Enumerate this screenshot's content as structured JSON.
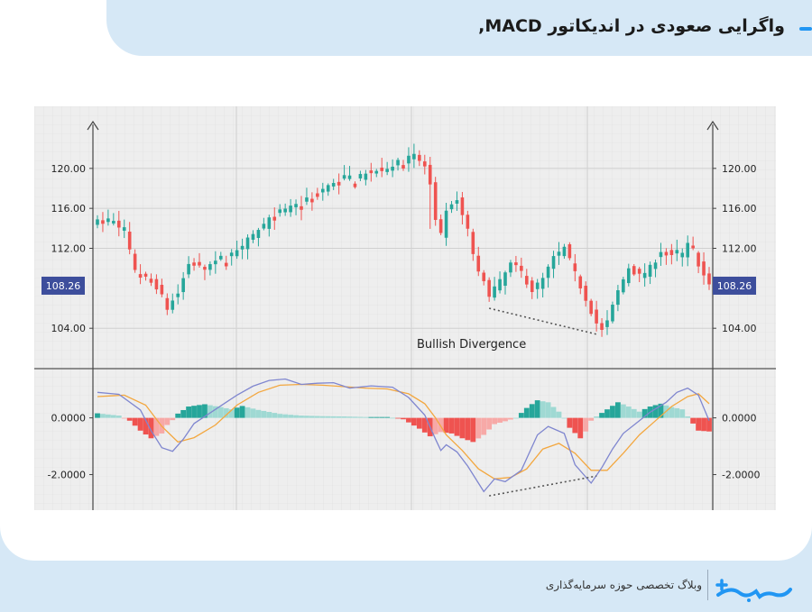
{
  "header": {
    "title": "واگرایی صعودی در اندیکاتور MACD,"
  },
  "footer": {
    "tagline": "وبلاگ تخصصی حوزه سرمایه‌گذاری"
  },
  "colors": {
    "up": "#26a69a",
    "down": "#ef5350",
    "macd": "#7f86cf",
    "signal": "#f3a73f",
    "badge": "#3d4e9c",
    "panel": "#eeeeee"
  },
  "chart_data": {
    "type": "candlestick",
    "annotation": "Bullish Divergence",
    "price_axis": {
      "ticks": [
        "120.00",
        "116.00",
        "112.00",
        "104.00"
      ],
      "tick_values": [
        120,
        116,
        112,
        104
      ],
      "range": [
        100.5,
        123.5
      ],
      "last_value": 108.26,
      "last_label": "108.26"
    },
    "macd_axis": {
      "ticks": [
        "0.0000",
        "-2.0000"
      ],
      "tick_values": [
        0,
        -2
      ],
      "range": [
        -3.0,
        1.45
      ]
    },
    "close_path": [
      [
        0,
        114.6
      ],
      [
        3,
        114.6
      ],
      [
        5,
        113.6
      ],
      [
        7,
        109.6
      ],
      [
        9,
        108.9
      ],
      [
        11,
        108.2
      ],
      [
        13,
        106.0
      ],
      [
        15,
        107.5
      ],
      [
        17,
        110.5
      ],
      [
        20,
        110.1
      ],
      [
        24,
        111.0
      ],
      [
        28,
        112.8
      ],
      [
        32,
        114.8
      ],
      [
        36,
        116.0
      ],
      [
        40,
        117.1
      ],
      [
        44,
        118.5
      ],
      [
        48,
        118.9
      ],
      [
        52,
        119.8
      ],
      [
        56,
        120.5
      ],
      [
        59,
        121.2
      ],
      [
        61,
        120.2
      ],
      [
        62,
        118.3
      ],
      [
        63,
        114.5
      ],
      [
        64,
        113.2
      ],
      [
        65,
        115.5
      ],
      [
        67,
        116.9
      ],
      [
        69,
        113.7
      ],
      [
        70,
        111.5
      ],
      [
        71,
        109.4
      ],
      [
        73,
        107.5
      ],
      [
        75,
        108.6
      ],
      [
        77,
        110.4
      ],
      [
        79,
        109.6
      ],
      [
        81,
        107.8
      ],
      [
        83,
        108.9
      ],
      [
        85,
        111.0
      ],
      [
        87,
        112.0
      ],
      [
        89,
        109.4
      ],
      [
        91,
        107.0
      ],
      [
        93,
        104.5
      ],
      [
        94,
        103.7
      ],
      [
        95,
        104.6
      ],
      [
        97,
        107.7
      ],
      [
        99,
        110.1
      ],
      [
        101,
        109.2
      ],
      [
        103,
        110.0
      ],
      [
        105,
        111.8
      ],
      [
        107,
        111.2
      ],
      [
        109,
        111.4
      ],
      [
        110,
        112.3
      ],
      [
        111,
        111.8
      ],
      [
        112,
        110.4
      ],
      [
        113,
        109.2
      ],
      [
        114,
        108.6
      ]
    ],
    "macd_line": [
      [
        0,
        0.9
      ],
      [
        4,
        0.83
      ],
      [
        8,
        0.28
      ],
      [
        10,
        -0.45
      ],
      [
        12,
        -1.05
      ],
      [
        14,
        -1.18
      ],
      [
        16,
        -0.75
      ],
      [
        18,
        -0.2
      ],
      [
        22,
        0.3
      ],
      [
        26,
        0.8
      ],
      [
        29,
        1.12
      ],
      [
        32,
        1.32
      ],
      [
        35,
        1.37
      ],
      [
        38,
        1.18
      ],
      [
        41,
        1.22
      ],
      [
        44,
        1.24
      ],
      [
        47,
        1.05
      ],
      [
        51,
        1.13
      ],
      [
        55,
        1.08
      ],
      [
        58,
        0.72
      ],
      [
        61,
        0.1
      ],
      [
        63,
        -0.75
      ],
      [
        64,
        -1.15
      ],
      [
        65,
        -0.95
      ],
      [
        67,
        -1.2
      ],
      [
        69,
        -1.7
      ],
      [
        72,
        -2.6
      ],
      [
        74,
        -2.15
      ],
      [
        76,
        -2.25
      ],
      [
        79,
        -1.85
      ],
      [
        82,
        -0.6
      ],
      [
        84,
        -0.3
      ],
      [
        87,
        -0.55
      ],
      [
        89,
        -1.65
      ],
      [
        92,
        -2.3
      ],
      [
        94,
        -1.75
      ],
      [
        96,
        -1.1
      ],
      [
        98,
        -0.55
      ],
      [
        101,
        -0.1
      ],
      [
        103,
        0.2
      ],
      [
        106,
        0.55
      ],
      [
        108,
        0.9
      ],
      [
        110,
        1.05
      ],
      [
        112,
        0.8
      ],
      [
        114,
        -0.1
      ]
    ],
    "signal_line": [
      [
        0,
        0.75
      ],
      [
        5,
        0.8
      ],
      [
        9,
        0.45
      ],
      [
        12,
        -0.3
      ],
      [
        15,
        -0.85
      ],
      [
        18,
        -0.7
      ],
      [
        22,
        -0.25
      ],
      [
        26,
        0.45
      ],
      [
        30,
        0.9
      ],
      [
        34,
        1.15
      ],
      [
        38,
        1.18
      ],
      [
        42,
        1.15
      ],
      [
        46,
        1.1
      ],
      [
        50,
        1.05
      ],
      [
        54,
        1.02
      ],
      [
        58,
        0.85
      ],
      [
        61,
        0.5
      ],
      [
        63,
        0.0
      ],
      [
        65,
        -0.6
      ],
      [
        68,
        -1.15
      ],
      [
        71,
        -1.8
      ],
      [
        74,
        -2.15
      ],
      [
        77,
        -2.1
      ],
      [
        80,
        -1.8
      ],
      [
        83,
        -1.1
      ],
      [
        86,
        -0.9
      ],
      [
        89,
        -1.25
      ],
      [
        92,
        -1.85
      ],
      [
        95,
        -1.85
      ],
      [
        98,
        -1.25
      ],
      [
        101,
        -0.6
      ],
      [
        104,
        -0.1
      ],
      [
        107,
        0.4
      ],
      [
        110,
        0.75
      ],
      [
        112,
        0.85
      ],
      [
        114,
        0.5
      ]
    ],
    "histogram_path": [
      [
        0,
        0.16
      ],
      [
        4,
        0.08
      ],
      [
        6,
        -0.1
      ],
      [
        8,
        -0.45
      ],
      [
        10,
        -0.72
      ],
      [
        12,
        -0.55
      ],
      [
        13,
        -0.25
      ],
      [
        14,
        -0.08
      ],
      [
        15,
        0.15
      ],
      [
        17,
        0.4
      ],
      [
        20,
        0.48
      ],
      [
        23,
        0.38
      ],
      [
        25,
        0.3
      ],
      [
        27,
        0.42
      ],
      [
        30,
        0.28
      ],
      [
        34,
        0.14
      ],
      [
        38,
        0.08
      ],
      [
        42,
        0.06
      ],
      [
        46,
        0.05
      ],
      [
        50,
        0.03
      ],
      [
        54,
        0.03
      ],
      [
        57,
        -0.05
      ],
      [
        60,
        -0.38
      ],
      [
        62,
        -0.65
      ],
      [
        64,
        -0.5
      ],
      [
        66,
        -0.55
      ],
      [
        68,
        -0.72
      ],
      [
        70,
        -0.85
      ],
      [
        72,
        -0.6
      ],
      [
        74,
        -0.22
      ],
      [
        76,
        -0.12
      ],
      [
        78,
        0.0
      ],
      [
        80,
        0.35
      ],
      [
        82,
        0.62
      ],
      [
        84,
        0.55
      ],
      [
        86,
        0.22
      ],
      [
        87,
        0.0
      ],
      [
        88,
        -0.35
      ],
      [
        90,
        -0.72
      ],
      [
        91,
        -0.48
      ],
      [
        92,
        -0.1
      ],
      [
        93,
        0.05
      ],
      [
        95,
        0.3
      ],
      [
        97,
        0.55
      ],
      [
        99,
        0.4
      ],
      [
        101,
        0.22
      ],
      [
        103,
        0.4
      ],
      [
        105,
        0.5
      ],
      [
        107,
        0.38
      ],
      [
        109,
        0.3
      ],
      [
        110,
        0.05
      ],
      [
        111,
        -0.2
      ],
      [
        112,
        -0.45
      ],
      [
        114,
        -0.48
      ]
    ],
    "divergence_price": [
      [
        73,
        106.0
      ],
      [
        91,
        103.4
      ]
    ],
    "divergence_macd": [
      [
        73,
        -2.75
      ],
      [
        91,
        -2.05
      ]
    ]
  }
}
